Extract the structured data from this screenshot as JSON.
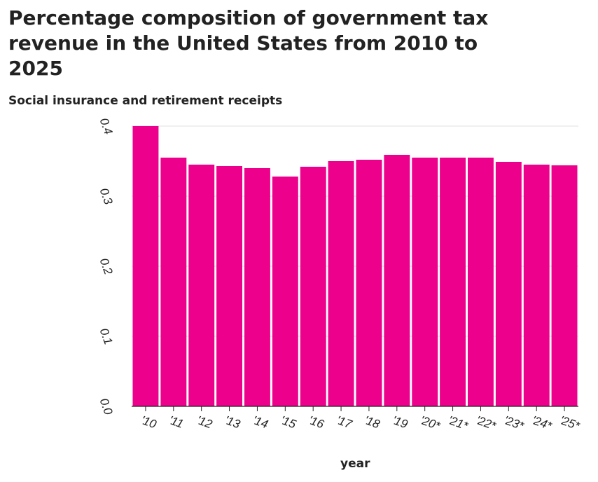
{
  "chart_data": {
    "type": "bar",
    "title": "Percentage composition of government tax revenue in the United States from 2010 to 2025",
    "ylabel": "Social insurance and retirement receipts",
    "xlabel": "year",
    "categories": [
      "'10",
      "'11",
      "'12",
      "'13",
      "'14",
      "'15",
      "'16",
      "'17",
      "'18",
      "'19",
      "'20*",
      "'21*",
      "'22*",
      "'23*",
      "'24*",
      "'25*"
    ],
    "values": [
      0.4,
      0.355,
      0.345,
      0.343,
      0.34,
      0.328,
      0.342,
      0.35,
      0.352,
      0.359,
      0.355,
      0.355,
      0.355,
      0.349,
      0.345,
      0.344
    ],
    "ylim": [
      0,
      0.4
    ],
    "yticks": [
      "0.0",
      "0.1",
      "0.2",
      "0.3",
      "0.4"
    ],
    "grid": true,
    "bar_color": "#ec008c",
    "grid_color": "#e0e0e0"
  }
}
